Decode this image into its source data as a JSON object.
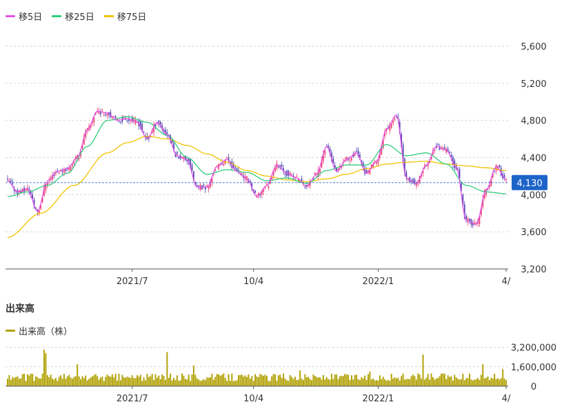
{
  "legend": {
    "ma5": "移5日",
    "ma25": "移25日",
    "ma75": "移75日"
  },
  "colors": {
    "ma5": "#e353e8",
    "ma25": "#2ecc7a",
    "ma75": "#f2c200",
    "up": "#ec3a6e",
    "down": "#4a3fb0",
    "current_badge": "#1d64c8",
    "volume": "#b0a000",
    "grid": "#d7d7d7"
  },
  "volume_section": {
    "title": "出来高",
    "legend": "出来高（株）"
  },
  "chart_data": [
    {
      "type": "candlestick",
      "y_ticks": [
        "5,600",
        "5,200",
        "4,800",
        "4,400",
        "4,000",
        "3,600",
        "3,200"
      ],
      "y_tick_values": [
        5600,
        5200,
        4800,
        4400,
        4000,
        3600,
        3200
      ],
      "ylim": [
        3200,
        5800
      ],
      "x_ticks": [
        "2021/7",
        "10/4",
        "2022/1",
        "4/"
      ],
      "current_value": 4130,
      "current_label": "4,130",
      "ma5_anchors": [
        [
          0,
          4150
        ],
        [
          6,
          4030
        ],
        [
          12,
          4060
        ],
        [
          18,
          3820
        ],
        [
          24,
          4150
        ],
        [
          30,
          4250
        ],
        [
          36,
          4280
        ],
        [
          42,
          4400
        ],
        [
          48,
          4700
        ],
        [
          54,
          4900
        ],
        [
          60,
          4880
        ],
        [
          66,
          4800
        ],
        [
          72,
          4820
        ],
        [
          78,
          4780
        ],
        [
          84,
          4600
        ],
        [
          90,
          4780
        ],
        [
          96,
          4650
        ],
        [
          102,
          4420
        ],
        [
          108,
          4380
        ],
        [
          114,
          4080
        ],
        [
          120,
          4080
        ],
        [
          126,
          4300
        ],
        [
          132,
          4380
        ],
        [
          138,
          4250
        ],
        [
          144,
          4170
        ],
        [
          150,
          3980
        ],
        [
          156,
          4100
        ],
        [
          162,
          4320
        ],
        [
          168,
          4230
        ],
        [
          174,
          4180
        ],
        [
          180,
          4090
        ],
        [
          186,
          4220
        ],
        [
          192,
          4520
        ],
        [
          198,
          4250
        ],
        [
          204,
          4380
        ],
        [
          210,
          4450
        ],
        [
          216,
          4230
        ],
        [
          222,
          4360
        ],
        [
          228,
          4700
        ],
        [
          234,
          4860
        ],
        [
          240,
          4180
        ],
        [
          246,
          4120
        ],
        [
          252,
          4320
        ],
        [
          258,
          4520
        ],
        [
          264,
          4480
        ],
        [
          270,
          4300
        ],
        [
          276,
          3720
        ],
        [
          282,
          3680
        ],
        [
          288,
          4050
        ],
        [
          294,
          4300
        ],
        [
          300,
          4170
        ]
      ],
      "ma25_anchors": [
        [
          0,
          3980
        ],
        [
          12,
          4030
        ],
        [
          24,
          4100
        ],
        [
          36,
          4230
        ],
        [
          48,
          4520
        ],
        [
          60,
          4800
        ],
        [
          72,
          4840
        ],
        [
          84,
          4780
        ],
        [
          96,
          4640
        ],
        [
          108,
          4400
        ],
        [
          120,
          4220
        ],
        [
          132,
          4270
        ],
        [
          144,
          4240
        ],
        [
          156,
          4150
        ],
        [
          168,
          4180
        ],
        [
          180,
          4120
        ],
        [
          192,
          4260
        ],
        [
          204,
          4320
        ],
        [
          216,
          4320
        ],
        [
          228,
          4540
        ],
        [
          240,
          4420
        ],
        [
          252,
          4450
        ],
        [
          264,
          4330
        ],
        [
          276,
          4100
        ],
        [
          288,
          4030
        ],
        [
          300,
          4010
        ]
      ],
      "ma75_anchors": [
        [
          0,
          3540
        ],
        [
          20,
          3800
        ],
        [
          40,
          4100
        ],
        [
          60,
          4450
        ],
        [
          72,
          4560
        ],
        [
          84,
          4630
        ],
        [
          96,
          4600
        ],
        [
          108,
          4530
        ],
        [
          120,
          4440
        ],
        [
          132,
          4350
        ],
        [
          144,
          4260
        ],
        [
          156,
          4200
        ],
        [
          168,
          4160
        ],
        [
          180,
          4140
        ],
        [
          192,
          4170
        ],
        [
          204,
          4220
        ],
        [
          216,
          4280
        ],
        [
          228,
          4330
        ],
        [
          240,
          4350
        ],
        [
          252,
          4360
        ],
        [
          264,
          4330
        ],
        [
          276,
          4310
        ],
        [
          288,
          4290
        ],
        [
          300,
          4260
        ]
      ]
    },
    {
      "type": "bar",
      "title": "出来高",
      "y_ticks": [
        "3,200,000",
        "1,600,000",
        "0"
      ],
      "y_tick_values": [
        3200000,
        1600000,
        0
      ],
      "ylim": [
        0,
        3400000
      ],
      "x_ticks": [
        "2021/7",
        "10/4",
        "2022/1",
        "4/"
      ],
      "typical_volume": 700000,
      "spikes": [
        [
          22,
          3000000
        ],
        [
          23,
          2700000
        ],
        [
          42,
          1800000
        ],
        [
          96,
          2800000
        ],
        [
          112,
          1700000
        ],
        [
          176,
          1300000
        ],
        [
          218,
          1200000
        ],
        [
          250,
          2600000
        ],
        [
          286,
          1800000
        ],
        [
          298,
          1400000
        ]
      ]
    }
  ]
}
